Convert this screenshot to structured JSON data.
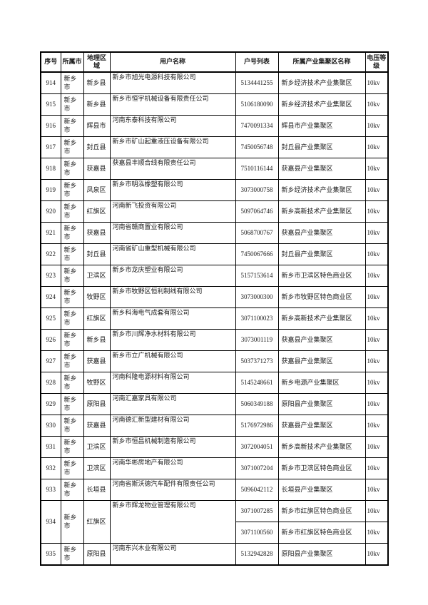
{
  "page": {
    "background_color": "#ffffff",
    "text_color": "#1a1a1a",
    "border_color": "#000000"
  },
  "table": {
    "columns": [
      "序号",
      "所属市",
      "地理区域",
      "用户名称",
      "户号列表",
      "所属产业集聚区名称",
      "电压等级"
    ],
    "rows": [
      {
        "no": "914",
        "city": "新乡市",
        "region": "新乡县",
        "user": "新乡市旭光电源科技有限公司",
        "accounts": [
          {
            "id": "5134441255",
            "cluster": "新乡经济技术产业集聚区",
            "voltage": "10kv"
          }
        ]
      },
      {
        "no": "915",
        "city": "新乡市",
        "region": "新乡县",
        "user": "新乡市恒宇机械设备有限责任公司",
        "accounts": [
          {
            "id": "5106180090",
            "cluster": "新乡经济技术产业集聚区",
            "voltage": "10kv"
          }
        ]
      },
      {
        "no": "916",
        "city": "新乡市",
        "region": "辉县市",
        "user": "河南东泰科技有限公司",
        "accounts": [
          {
            "id": "7470091334",
            "cluster": "辉县市产业集聚区",
            "voltage": "10kv"
          }
        ]
      },
      {
        "no": "917",
        "city": "新乡市",
        "region": "封丘县",
        "user": "新乡市矿山起重液压设备有限公司",
        "accounts": [
          {
            "id": "7450056748",
            "cluster": "封丘县产业集聚区",
            "voltage": "10kv"
          }
        ]
      },
      {
        "no": "918",
        "city": "新乡市",
        "region": "获嘉县",
        "user": "获嘉县丰顺合线有限责任公司",
        "accounts": [
          {
            "id": "7510116144",
            "cluster": "获嘉县产业集聚区",
            "voltage": "10kv"
          }
        ]
      },
      {
        "no": "919",
        "city": "新乡市",
        "region": "凤泉区",
        "user": "新乡市明泓橡塑有限公司",
        "accounts": [
          {
            "id": "3073000758",
            "cluster": "新乡经济技术产业集聚区",
            "voltage": "10kv"
          }
        ]
      },
      {
        "no": "920",
        "city": "新乡市",
        "region": "红旗区",
        "user": "河南新飞投资有限公司",
        "accounts": [
          {
            "id": "5097064746",
            "cluster": "新乡高新技术产业集聚区",
            "voltage": "10kv"
          }
        ]
      },
      {
        "no": "921",
        "city": "新乡市",
        "region": "获嘉县",
        "user": "河南省赣商置业有限公司",
        "accounts": [
          {
            "id": "5068700767",
            "cluster": "获嘉县产业集聚区",
            "voltage": "10kv"
          }
        ]
      },
      {
        "no": "922",
        "city": "新乡市",
        "region": "封丘县",
        "user": "河南省矿山重型机械有限公司",
        "accounts": [
          {
            "id": "7450067666",
            "cluster": "封丘县产业集聚区",
            "voltage": "10kv"
          }
        ]
      },
      {
        "no": "923",
        "city": "新乡市",
        "region": "卫滨区",
        "user": "新乡市龙庆塑业有限公司",
        "accounts": [
          {
            "id": "5157153614",
            "cluster": "新乡市卫滨区特色商业区",
            "voltage": "10kv"
          }
        ]
      },
      {
        "no": "924",
        "city": "新乡市",
        "region": "牧野区",
        "user": "新乡市牧野区恒利制线有限公司",
        "accounts": [
          {
            "id": "3073000300",
            "cluster": "新乡市牧野区特色商业区",
            "voltage": "10kv"
          }
        ]
      },
      {
        "no": "925",
        "city": "新乡市",
        "region": "红旗区",
        "user": "新乡科海电气成套有限公司",
        "accounts": [
          {
            "id": "3071100023",
            "cluster": "新乡高新技术产业集聚区",
            "voltage": "10kv"
          }
        ]
      },
      {
        "no": "926",
        "city": "新乡市",
        "region": "新乡县",
        "user": "新乡市川辉净水材料有限公司",
        "accounts": [
          {
            "id": "3073001119",
            "cluster": "获嘉县产业集聚区",
            "voltage": "10kv"
          }
        ]
      },
      {
        "no": "927",
        "city": "新乡市",
        "region": "获嘉县",
        "user": "新乡市立广机械有限公司",
        "accounts": [
          {
            "id": "5037371273",
            "cluster": "获嘉县产业集聚区",
            "voltage": "10kv"
          }
        ]
      },
      {
        "no": "928",
        "city": "新乡市",
        "region": "牧野区",
        "user": "河南科隆电源材料有限公司",
        "accounts": [
          {
            "id": "5145248661",
            "cluster": "新乡电源产业集聚区",
            "voltage": "10kv"
          }
        ]
      },
      {
        "no": "929",
        "city": "新乡市",
        "region": "原阳县",
        "user": "河南汇嘉家具有限公司",
        "accounts": [
          {
            "id": "5060349188",
            "cluster": "原阳县产业集聚区",
            "voltage": "10kv"
          }
        ]
      },
      {
        "no": "930",
        "city": "新乡市",
        "region": "获嘉县",
        "user": "河南德汇新型建材有限公司",
        "accounts": [
          {
            "id": "5176972986",
            "cluster": "获嘉县产业集聚区",
            "voltage": "10kv"
          }
        ]
      },
      {
        "no": "931",
        "city": "新乡市",
        "region": "卫滨区",
        "user": "新乡市恒昌机械制造有限公司",
        "accounts": [
          {
            "id": "3072004051",
            "cluster": "新乡高新技术产业集聚区",
            "voltage": "10kv"
          }
        ]
      },
      {
        "no": "932",
        "city": "新乡市",
        "region": "卫滨区",
        "user": "河南华彬房地产有限公司",
        "accounts": [
          {
            "id": "3071007204",
            "cluster": "新乡市卫滨区特色商业区",
            "voltage": "10kv"
          }
        ]
      },
      {
        "no": "933",
        "city": "新乡市",
        "region": "长垣县",
        "user": "河南省斯沃德汽车配件有限责任公司",
        "accounts": [
          {
            "id": "5096042112",
            "cluster": "长垣县产业集聚区",
            "voltage": "10kv"
          }
        ]
      },
      {
        "no": "934",
        "city": "新乡市",
        "region": "红旗区",
        "user": "新乡市辉龙物业管理有限公司",
        "accounts": [
          {
            "id": "3071007285",
            "cluster": "新乡市红旗区特色商业区",
            "voltage": "10kv"
          },
          {
            "id": "3071100560",
            "cluster": "新乡市红旗区特色商业区",
            "voltage": "10kv"
          }
        ]
      },
      {
        "no": "935",
        "city": "新乡市",
        "region": "原阳县",
        "user": "河南东兴木业有限公司",
        "accounts": [
          {
            "id": "5132942828",
            "cluster": "原阳县产业集聚区",
            "voltage": "10kv"
          }
        ]
      }
    ]
  }
}
